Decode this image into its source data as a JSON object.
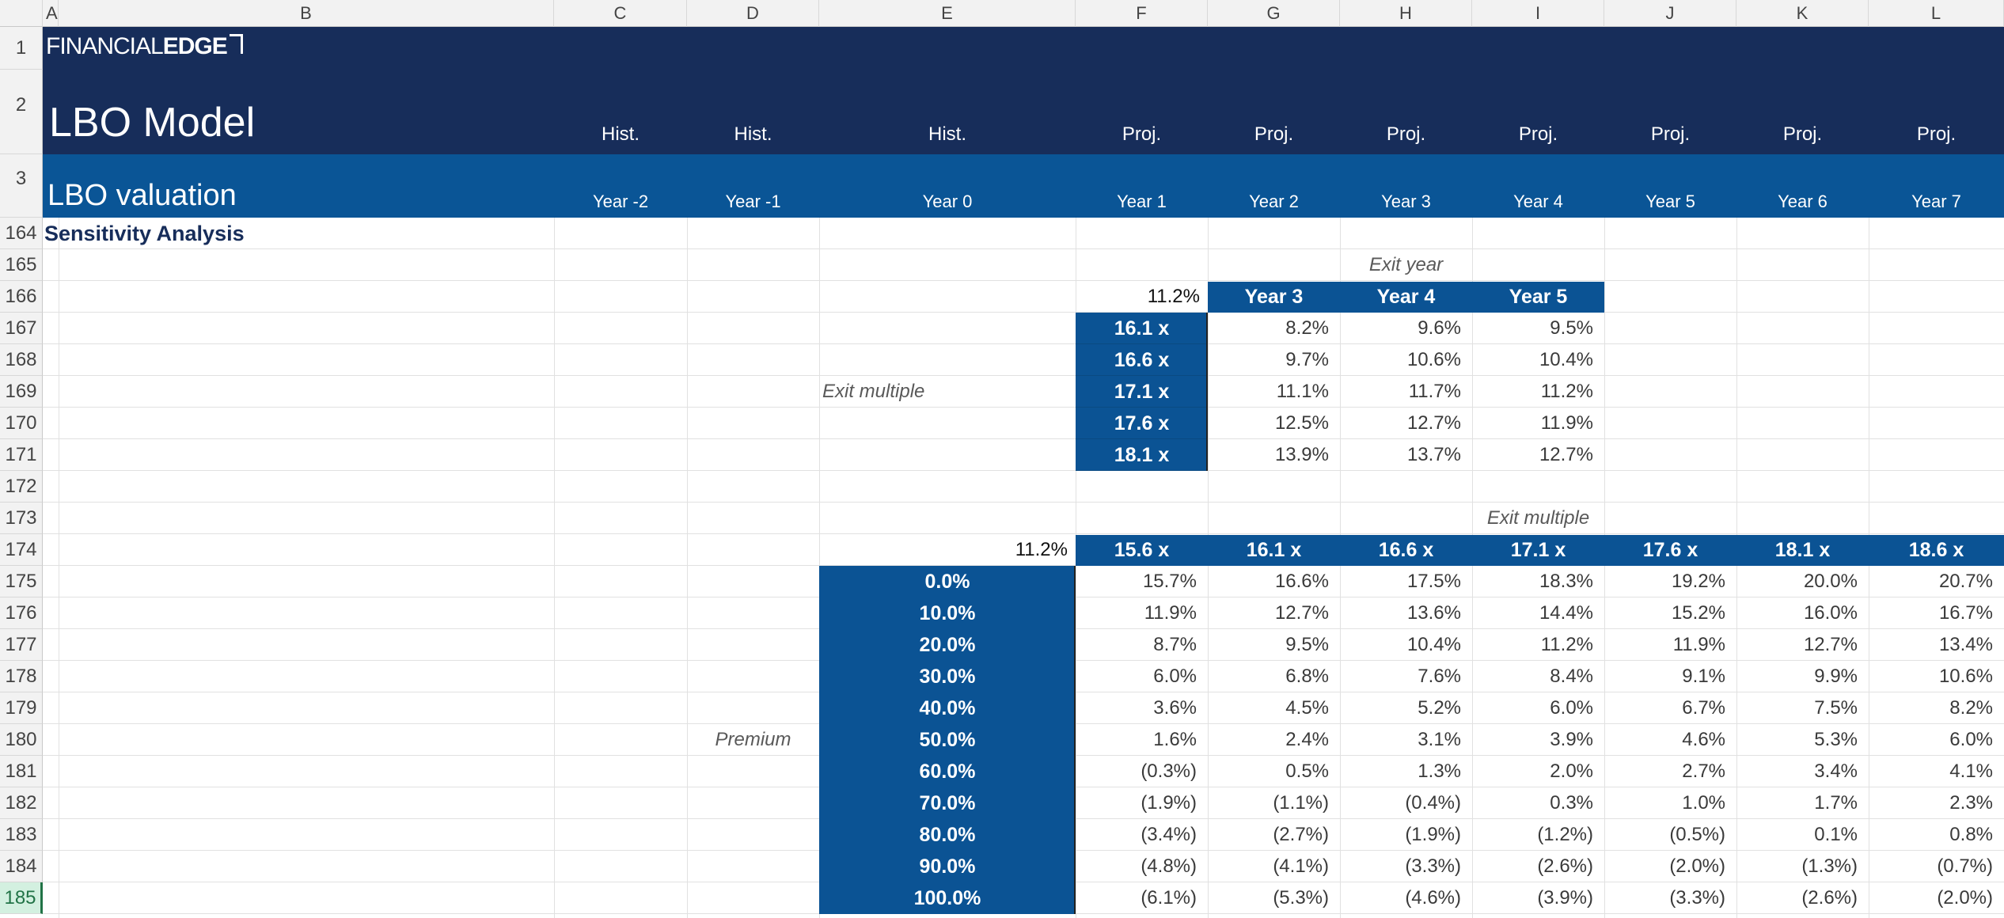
{
  "columns": [
    "A",
    "B",
    "C",
    "D",
    "E",
    "F",
    "G",
    "H",
    "I",
    "J",
    "K",
    "L"
  ],
  "logo": {
    "prefix": "FINANCIAL",
    "suffix": "EDGE"
  },
  "header": {
    "title": "LBO Model",
    "subtitle": "LBO valuation",
    "periods": [
      "Hist.",
      "Hist.",
      "Hist.",
      "Proj.",
      "Proj.",
      "Proj.",
      "Proj.",
      "Proj.",
      "Proj.",
      "Proj."
    ],
    "years": [
      "Year -2",
      "Year -1",
      "Year 0",
      "Year 1",
      "Year 2",
      "Year 3",
      "Year 4",
      "Year 5",
      "Year 6",
      "Year 7"
    ]
  },
  "row_numbers": [
    "1",
    "2",
    "3",
    "164",
    "165",
    "166",
    "167",
    "168",
    "169",
    "170",
    "171",
    "172",
    "173",
    "174",
    "175",
    "176",
    "177",
    "178",
    "179",
    "180",
    "181",
    "182",
    "183",
    "184",
    "185"
  ],
  "section_title": "Sensitivity Analysis",
  "table1": {
    "title": "Exit year",
    "corner": "11.2%",
    "row_label": "Exit multiple",
    "cols": [
      "Year 3",
      "Year 4",
      "Year 5"
    ],
    "rows": [
      {
        "h": "16.1 x",
        "v": [
          "8.2%",
          "9.6%",
          "9.5%"
        ]
      },
      {
        "h": "16.6 x",
        "v": [
          "9.7%",
          "10.6%",
          "10.4%"
        ]
      },
      {
        "h": "17.1 x",
        "v": [
          "11.1%",
          "11.7%",
          "11.2%"
        ]
      },
      {
        "h": "17.6 x",
        "v": [
          "12.5%",
          "12.7%",
          "11.9%"
        ]
      },
      {
        "h": "18.1 x",
        "v": [
          "13.9%",
          "13.7%",
          "12.7%"
        ]
      }
    ]
  },
  "table2": {
    "title": "Exit multiple",
    "corner": "11.2%",
    "row_label": "Premium",
    "cols": [
      "15.6 x",
      "16.1 x",
      "16.6 x",
      "17.1 x",
      "17.6 x",
      "18.1 x",
      "18.6 x"
    ],
    "rows": [
      {
        "h": "0.0%",
        "v": [
          "15.7%",
          "16.6%",
          "17.5%",
          "18.3%",
          "19.2%",
          "20.0%",
          "20.7%"
        ]
      },
      {
        "h": "10.0%",
        "v": [
          "11.9%",
          "12.7%",
          "13.6%",
          "14.4%",
          "15.2%",
          "16.0%",
          "16.7%"
        ]
      },
      {
        "h": "20.0%",
        "v": [
          "8.7%",
          "9.5%",
          "10.4%",
          "11.2%",
          "11.9%",
          "12.7%",
          "13.4%"
        ]
      },
      {
        "h": "30.0%",
        "v": [
          "6.0%",
          "6.8%",
          "7.6%",
          "8.4%",
          "9.1%",
          "9.9%",
          "10.6%"
        ]
      },
      {
        "h": "40.0%",
        "v": [
          "3.6%",
          "4.5%",
          "5.2%",
          "6.0%",
          "6.7%",
          "7.5%",
          "8.2%"
        ]
      },
      {
        "h": "50.0%",
        "v": [
          "1.6%",
          "2.4%",
          "3.1%",
          "3.9%",
          "4.6%",
          "5.3%",
          "6.0%"
        ]
      },
      {
        "h": "60.0%",
        "v": [
          "(0.3%)",
          "0.5%",
          "1.3%",
          "2.0%",
          "2.7%",
          "3.4%",
          "4.1%"
        ]
      },
      {
        "h": "70.0%",
        "v": [
          "(1.9%)",
          "(1.1%)",
          "(0.4%)",
          "0.3%",
          "1.0%",
          "1.7%",
          "2.3%"
        ]
      },
      {
        "h": "80.0%",
        "v": [
          "(3.4%)",
          "(2.7%)",
          "(1.9%)",
          "(1.2%)",
          "(0.5%)",
          "0.1%",
          "0.8%"
        ]
      },
      {
        "h": "90.0%",
        "v": [
          "(4.8%)",
          "(4.1%)",
          "(3.3%)",
          "(2.6%)",
          "(2.0%)",
          "(1.3%)",
          "(0.7%)"
        ]
      },
      {
        "h": "100.0%",
        "v": [
          "(6.1%)",
          "(5.3%)",
          "(4.6%)",
          "(3.9%)",
          "(3.3%)",
          "(2.6%)",
          "(2.0%)"
        ]
      }
    ]
  },
  "colors": {
    "header_dark": "#172d5a",
    "header_mid": "#0a5596",
    "table_blue": "#0b5394"
  }
}
